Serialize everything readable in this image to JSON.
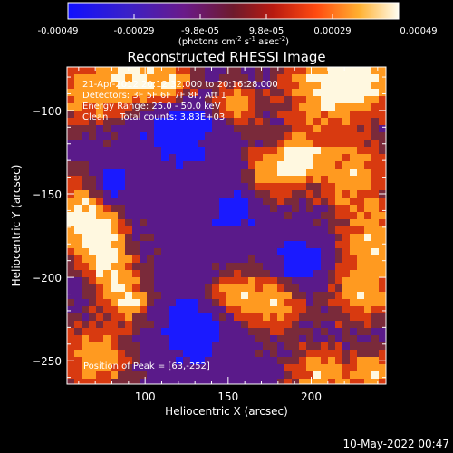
{
  "colorbar": {
    "ticks": [
      "-0.00049",
      "-0.00029",
      "-9.8e-05",
      "9.8e-05",
      "0.00029",
      "0.00049"
    ],
    "units_main": "(photons cm",
    "units_exp1": "-2",
    "units_mid": " s",
    "units_exp2": "-1",
    "units_mid2": " asec",
    "units_exp3": "-2",
    "units_end": ")"
  },
  "title": "Reconstructed RHESSI Image",
  "info": {
    "line1": "21-Apr-2012 20:12:32.000 to 20:16:28.000",
    "line2": "Detectors: 3F 5F 6F 7F 8F, Att 1",
    "line3": "Energy Range: 25.0 - 50.0 keV",
    "line4": "Clean    Total counts: 3.83E+03"
  },
  "peak_text": "Position of Peak = [63,-252]",
  "x_axis": {
    "label": "Heliocentric X (arcsec)",
    "ticks": [
      {
        "value": 100,
        "label": "100"
      },
      {
        "value": 150,
        "label": "150"
      },
      {
        "value": 200,
        "label": "200"
      }
    ],
    "range": [
      53,
      245
    ]
  },
  "y_axis": {
    "label": "Heliocentric Y (arcsec)",
    "ticks": [
      {
        "value": -100,
        "label": "−100"
      },
      {
        "value": -150,
        "label": "−150"
      },
      {
        "value": -200,
        "label": "−200"
      },
      {
        "value": -250,
        "label": "−250"
      }
    ],
    "range": [
      -264,
      -74
    ]
  },
  "timestamp": "10-May-2022 00:47",
  "colors": {
    "background": "#000000",
    "low": "#1a1aff",
    "mid_low": "#5a1a8a",
    "mid": "#7a2a3a",
    "mid_high": "#d83a10",
    "high": "#ff9a20",
    "top": "#fff8e0"
  }
}
